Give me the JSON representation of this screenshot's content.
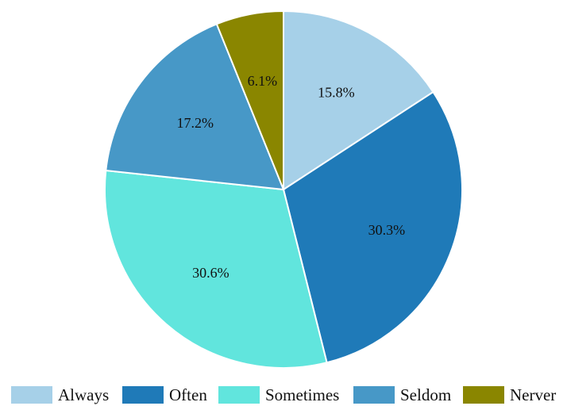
{
  "chart_data": {
    "type": "pie",
    "categories": [
      "Always",
      "Often",
      "Sometimes",
      "Seldom",
      "Nerver"
    ],
    "values": [
      15.8,
      30.3,
      30.6,
      17.2,
      6.1
    ],
    "labels": [
      "15.8%",
      "30.3%",
      "30.6%",
      "17.2%",
      "6.1%"
    ],
    "colors": [
      "#a6d0e8",
      "#1f7ab8",
      "#61e5dd",
      "#4798c7",
      "#8a8600"
    ],
    "start_angle": "12 o'clock",
    "direction": "clockwise",
    "legend_position": "bottom",
    "title": ""
  }
}
